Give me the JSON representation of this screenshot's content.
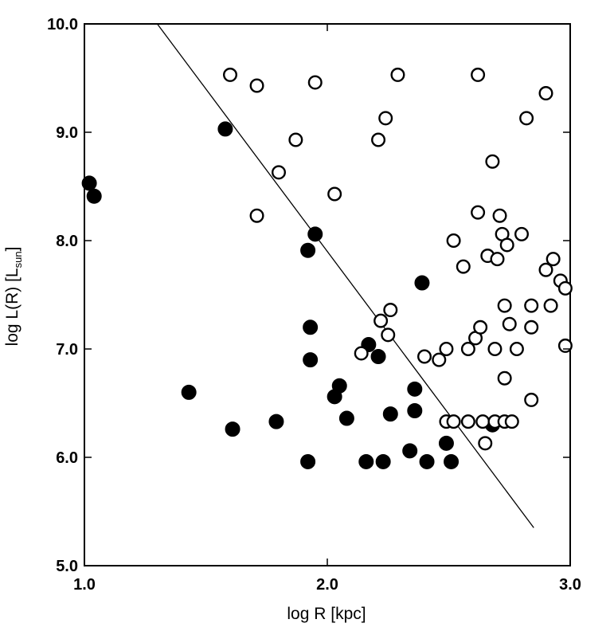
{
  "chart_data": {
    "type": "scatter",
    "title": "",
    "xlabel": "log R [kpc]",
    "ylabel_main": "log L(R) [L",
    "ylabel_sub": "sun",
    "ylabel_close": "]",
    "xlim": [
      1.0,
      3.0
    ],
    "ylim": [
      5.0,
      10.0
    ],
    "x_ticks": [
      1.0,
      2.0,
      3.0
    ],
    "x_tick_labels": [
      "1.0",
      "2.0",
      "3.0"
    ],
    "y_ticks": [
      5.0,
      6.0,
      7.0,
      8.0,
      9.0,
      10.0
    ],
    "y_tick_labels": [
      "5.0",
      "6.0",
      "7.0",
      "8.0",
      "9.0",
      "10.0"
    ],
    "grid": false,
    "series": [
      {
        "name": "filled",
        "marker": "filled-circle",
        "color": "#000000",
        "points": [
          [
            1.02,
            8.53
          ],
          [
            1.04,
            8.41
          ],
          [
            1.43,
            6.6
          ],
          [
            1.58,
            9.03
          ],
          [
            1.61,
            6.26
          ],
          [
            1.79,
            6.33
          ],
          [
            1.92,
            7.91
          ],
          [
            1.93,
            7.2
          ],
          [
            1.93,
            6.9
          ],
          [
            1.95,
            8.06
          ],
          [
            1.92,
            5.96
          ],
          [
            2.03,
            6.56
          ],
          [
            2.05,
            6.66
          ],
          [
            2.08,
            6.36
          ],
          [
            2.17,
            7.04
          ],
          [
            2.21,
            6.93
          ],
          [
            2.26,
            6.4
          ],
          [
            2.36,
            6.63
          ],
          [
            2.36,
            6.43
          ],
          [
            2.39,
            7.61
          ],
          [
            2.16,
            5.96
          ],
          [
            2.23,
            5.96
          ],
          [
            2.34,
            6.06
          ],
          [
            2.41,
            5.96
          ],
          [
            2.49,
            6.13
          ],
          [
            2.51,
            5.96
          ],
          [
            2.68,
            6.3
          ]
        ]
      },
      {
        "name": "open",
        "marker": "open-circle",
        "color": "#000000",
        "points": [
          [
            1.6,
            9.53
          ],
          [
            1.71,
            9.43
          ],
          [
            1.95,
            9.46
          ],
          [
            2.29,
            9.53
          ],
          [
            2.62,
            9.53
          ],
          [
            2.24,
            9.13
          ],
          [
            2.21,
            8.93
          ],
          [
            1.87,
            8.93
          ],
          [
            2.82,
            9.13
          ],
          [
            2.9,
            9.36
          ],
          [
            1.8,
            8.63
          ],
          [
            2.03,
            8.43
          ],
          [
            1.71,
            8.23
          ],
          [
            2.68,
            8.73
          ],
          [
            2.62,
            8.26
          ],
          [
            2.71,
            8.23
          ],
          [
            2.52,
            8.0
          ],
          [
            2.56,
            7.76
          ],
          [
            2.66,
            7.86
          ],
          [
            2.7,
            7.83
          ],
          [
            2.72,
            8.06
          ],
          [
            2.74,
            7.96
          ],
          [
            2.8,
            8.06
          ],
          [
            2.93,
            7.83
          ],
          [
            2.9,
            7.73
          ],
          [
            2.96,
            7.63
          ],
          [
            2.98,
            7.56
          ],
          [
            2.73,
            7.4
          ],
          [
            2.84,
            7.4
          ],
          [
            2.92,
            7.4
          ],
          [
            2.26,
            7.36
          ],
          [
            2.22,
            7.26
          ],
          [
            2.25,
            7.13
          ],
          [
            2.14,
            6.96
          ],
          [
            2.4,
            6.93
          ],
          [
            2.46,
            6.9
          ],
          [
            2.49,
            7.0
          ],
          [
            2.58,
            7.0
          ],
          [
            2.61,
            7.1
          ],
          [
            2.63,
            7.2
          ],
          [
            2.69,
            7.0
          ],
          [
            2.75,
            7.23
          ],
          [
            2.78,
            7.0
          ],
          [
            2.84,
            7.2
          ],
          [
            2.98,
            7.03
          ],
          [
            2.73,
            6.73
          ],
          [
            2.84,
            6.53
          ],
          [
            2.49,
            6.33
          ],
          [
            2.52,
            6.33
          ],
          [
            2.58,
            6.33
          ],
          [
            2.64,
            6.33
          ],
          [
            2.69,
            6.33
          ],
          [
            2.73,
            6.33
          ],
          [
            2.76,
            6.33
          ],
          [
            2.65,
            6.13
          ]
        ]
      }
    ],
    "lines": [
      {
        "name": "diagonal-line",
        "x": [
          1.3,
          2.85
        ],
        "y": [
          10.0,
          5.35
        ]
      }
    ]
  }
}
